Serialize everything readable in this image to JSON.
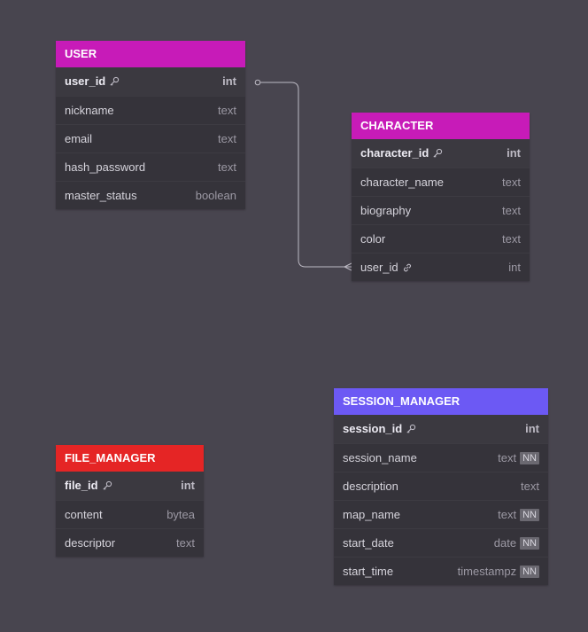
{
  "colors": {
    "background": "#48454f",
    "user_header": "#c71bb8",
    "character_header": "#c71bb8",
    "file_manager_header": "#e52525",
    "session_manager_header": "#6c59f4"
  },
  "tables": {
    "user": {
      "name": "USER",
      "columns": [
        {
          "name": "user_id",
          "type": "int",
          "pk": true,
          "icon": "key-icon"
        },
        {
          "name": "nickname",
          "type": "text"
        },
        {
          "name": "email",
          "type": "text"
        },
        {
          "name": "hash_password",
          "type": "text"
        },
        {
          "name": "master_status",
          "type": "boolean"
        }
      ]
    },
    "character": {
      "name": "CHARACTER",
      "columns": [
        {
          "name": "character_id",
          "type": "int",
          "pk": true,
          "icon": "key-icon"
        },
        {
          "name": "character_name",
          "type": "text"
        },
        {
          "name": "biography",
          "type": "text"
        },
        {
          "name": "color",
          "type": "text"
        },
        {
          "name": "user_id",
          "type": "int",
          "icon": "link-icon"
        }
      ]
    },
    "file_manager": {
      "name": "FILE_MANAGER",
      "columns": [
        {
          "name": "file_id",
          "type": "int",
          "pk": true,
          "icon": "key-icon"
        },
        {
          "name": "content",
          "type": "bytea"
        },
        {
          "name": "descriptor",
          "type": "text"
        }
      ]
    },
    "session_manager": {
      "name": "SESSION_MANAGER",
      "columns": [
        {
          "name": "session_id",
          "type": "int",
          "pk": true,
          "icon": "key-icon"
        },
        {
          "name": "session_name",
          "type": "text",
          "nn": "NN"
        },
        {
          "name": "description",
          "type": "text"
        },
        {
          "name": "map_name",
          "type": "text",
          "nn": "NN"
        },
        {
          "name": "start_date",
          "type": "date",
          "nn": "NN"
        },
        {
          "name": "start_time",
          "type": "timestampz",
          "nn": "NN"
        }
      ]
    }
  },
  "relationships": [
    {
      "from": "user.user_id",
      "to": "character.user_id",
      "cardinality": "one-to-many"
    }
  ]
}
